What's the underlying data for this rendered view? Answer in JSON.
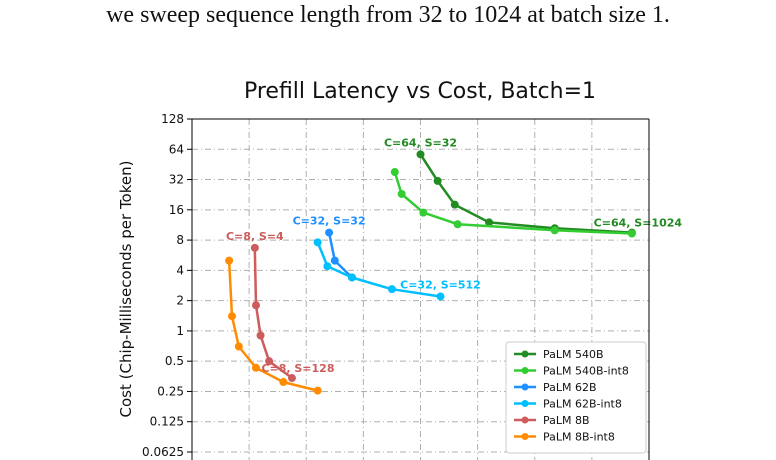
{
  "caption": "we sweep sequence length from 32 to 1024 at batch size 1.",
  "chart_data": {
    "type": "line",
    "title": "Prefill Latency vs Cost, Batch=1",
    "xlabel": "",
    "ylabel": "Cost (Chip-Milliseconds per Token)",
    "yscale": "log2",
    "ylim": [
      0.0625,
      128
    ],
    "yticks": [
      "0.0625",
      "0.125",
      "0.25",
      "0.5",
      "1",
      "2",
      "4",
      "8",
      "16",
      "32",
      "64",
      "128"
    ],
    "grid": true,
    "legend_position": "lower-right",
    "series": [
      {
        "name": "PaLM 540B",
        "color": "#228B22",
        "x": [
          0.6,
          0.63,
          0.66,
          0.72,
          0.835,
          0.97
        ],
        "y": [
          57,
          31,
          18,
          12,
          10.5,
          9.5
        ]
      },
      {
        "name": "PaLM 540B-int8",
        "color": "#33CC33",
        "x": [
          0.555,
          0.567,
          0.605,
          0.665,
          0.835,
          0.97
        ],
        "y": [
          38,
          23,
          15,
          11.5,
          10,
          9.3
        ]
      },
      {
        "name": "PaLM 62B",
        "color": "#1E90FF",
        "x": [
          0.44,
          0.45,
          0.48
        ],
        "y": [
          9.5,
          5,
          3.4
        ]
      },
      {
        "name": "PaLM 62B-int8",
        "color": "#00BFFF",
        "x": [
          0.42,
          0.437,
          0.48,
          0.55,
          0.635
        ],
        "y": [
          7.6,
          4.4,
          3.4,
          2.6,
          2.2
        ]
      },
      {
        "name": "PaLM 8B",
        "color": "#CD5C5C",
        "x": [
          0.31,
          0.312,
          0.32,
          0.335,
          0.375
        ],
        "y": [
          6.7,
          1.8,
          0.9,
          0.5,
          0.34
        ]
      },
      {
        "name": "PaLM 8B-int8",
        "color": "#FF8C00",
        "x": [
          0.265,
          0.27,
          0.282,
          0.312,
          0.36,
          0.42
        ],
        "y": [
          5,
          1.4,
          0.7,
          0.43,
          0.31,
          0.255
        ]
      }
    ],
    "annotations": [
      {
        "text": "C=64, S=32",
        "series": 0,
        "point": 0
      },
      {
        "text": "C=64, S=1024",
        "series": 0,
        "point": 5
      },
      {
        "text": "C=32, S=32",
        "series": 2,
        "point": 0
      },
      {
        "text": "C=32, S=512",
        "series": 3,
        "point": 4
      },
      {
        "text": "C=8, S=4",
        "series": 4,
        "point": 0
      },
      {
        "text": "C=8, S=128",
        "series": 4,
        "point": 4
      }
    ]
  }
}
